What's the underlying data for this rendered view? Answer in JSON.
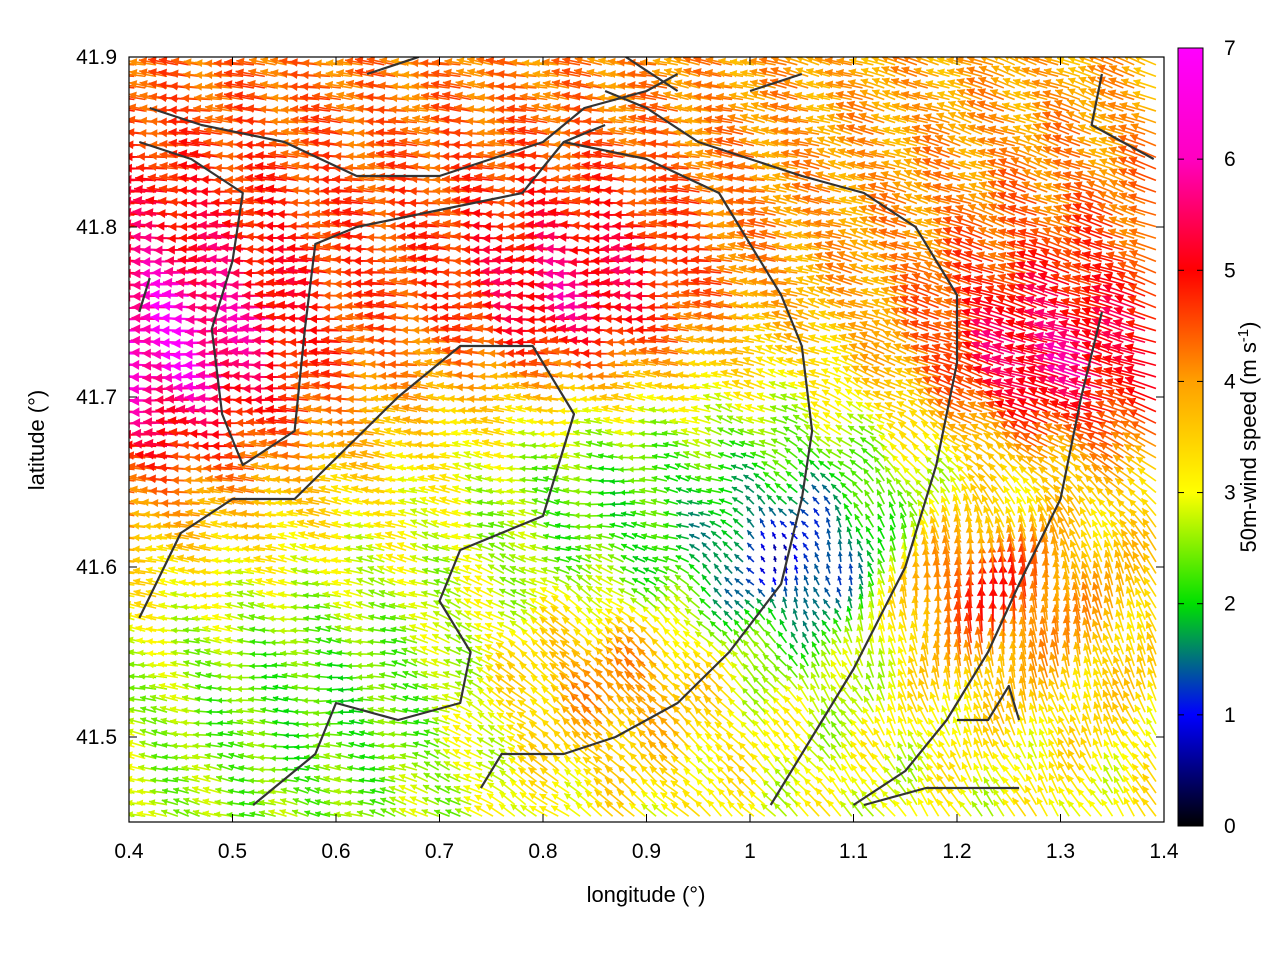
{
  "chart_data": {
    "type": "vector_field",
    "xlabel": "longitude (°)",
    "ylabel": "latitude (°)",
    "xlim": [
      0.4,
      1.4
    ],
    "ylim": [
      41.45,
      41.9
    ],
    "x_ticks": [
      "0.4",
      "0.5",
      "0.6",
      "0.7",
      "0.8",
      "0.9",
      "1",
      "1.1",
      "1.2",
      "1.3",
      "1.4"
    ],
    "y_ticks": [
      "41.5",
      "41.6",
      "41.7",
      "41.8",
      "41.9"
    ],
    "colorbar": {
      "label_main": "50m-wind speed (m s",
      "label_sup": "-1",
      "label_end": ")",
      "range": [
        0,
        7
      ],
      "ticks": [
        "0",
        "1",
        "2",
        "3",
        "4",
        "5",
        "6",
        "7"
      ],
      "colors": [
        "#000000",
        "#0000ff",
        "#00e000",
        "#ffff00",
        "#ffa000",
        "#ff0000",
        "#ff00ff"
      ]
    },
    "field_summary": [
      {
        "region": "north-west",
        "lon": 0.45,
        "lat": 41.73,
        "speed": 7.0,
        "direction": "west"
      },
      {
        "region": "central band",
        "lon": 0.85,
        "lat": 41.76,
        "speed": 6.5,
        "direction": "west"
      },
      {
        "region": "east-central",
        "lon": 1.3,
        "lat": 41.72,
        "speed": 6.5,
        "direction": "west-northwest"
      },
      {
        "region": "centre",
        "lon": 0.88,
        "lat": 41.64,
        "speed": 2.5,
        "direction": "west"
      },
      {
        "region": "calm zone",
        "lon": 1.05,
        "lat": 41.6,
        "speed": 0.8,
        "direction": "north"
      },
      {
        "region": "south-east",
        "lon": 1.22,
        "lat": 41.58,
        "speed": 6.0,
        "direction": "north"
      },
      {
        "region": "south-west",
        "lon": 0.6,
        "lat": 41.52,
        "speed": 2.5,
        "direction": "west"
      },
      {
        "region": "south-central",
        "lon": 0.88,
        "lat": 41.53,
        "speed": 5.0,
        "direction": "northwest"
      }
    ],
    "contours": [
      [
        [
          0.42,
          41.87
        ],
        [
          0.47,
          41.86
        ],
        [
          0.55,
          41.85
        ],
        [
          0.62,
          41.83
        ],
        [
          0.7,
          41.83
        ],
        [
          0.75,
          41.84
        ],
        [
          0.8,
          41.85
        ],
        [
          0.84,
          41.87
        ],
        [
          0.9,
          41.88
        ],
        [
          0.93,
          41.89
        ]
      ],
      [
        [
          0.41,
          41.85
        ],
        [
          0.46,
          41.84
        ],
        [
          0.51,
          41.82
        ],
        [
          0.5,
          41.78
        ],
        [
          0.48,
          41.74
        ],
        [
          0.49,
          41.69
        ],
        [
          0.51,
          41.66
        ],
        [
          0.56,
          41.68
        ],
        [
          0.57,
          41.74
        ],
        [
          0.58,
          41.79
        ],
        [
          0.62,
          41.8
        ],
        [
          0.7,
          41.81
        ],
        [
          0.78,
          41.82
        ],
        [
          0.82,
          41.85
        ],
        [
          0.86,
          41.86
        ]
      ],
      [
        [
          0.41,
          41.75
        ],
        [
          0.42,
          41.77
        ]
      ],
      [
        [
          0.41,
          41.57
        ],
        [
          0.45,
          41.62
        ],
        [
          0.5,
          41.64
        ],
        [
          0.56,
          41.64
        ],
        [
          0.61,
          41.67
        ],
        [
          0.66,
          41.7
        ],
        [
          0.72,
          41.73
        ],
        [
          0.79,
          41.73
        ],
        [
          0.83,
          41.69
        ],
        [
          0.8,
          41.63
        ],
        [
          0.72,
          41.61
        ],
        [
          0.7,
          41.58
        ],
        [
          0.73,
          41.55
        ],
        [
          0.72,
          41.52
        ],
        [
          0.66,
          41.51
        ],
        [
          0.6,
          41.52
        ],
        [
          0.58,
          41.49
        ],
        [
          0.52,
          41.46
        ]
      ],
      [
        [
          0.82,
          41.85
        ],
        [
          0.9,
          41.84
        ],
        [
          0.97,
          41.82
        ],
        [
          1.0,
          41.79
        ],
        [
          1.03,
          41.76
        ],
        [
          1.05,
          41.73
        ],
        [
          1.06,
          41.68
        ],
        [
          1.05,
          41.64
        ],
        [
          1.03,
          41.59
        ],
        [
          0.98,
          41.55
        ],
        [
          0.93,
          41.52
        ],
        [
          0.87,
          41.5
        ],
        [
          0.82,
          41.49
        ],
        [
          0.76,
          41.49
        ],
        [
          0.74,
          41.47
        ]
      ],
      [
        [
          1.02,
          41.46
        ],
        [
          1.06,
          41.5
        ],
        [
          1.1,
          41.54
        ],
        [
          1.15,
          41.6
        ],
        [
          1.18,
          41.66
        ],
        [
          1.2,
          41.72
        ],
        [
          1.2,
          41.76
        ],
        [
          1.16,
          41.8
        ],
        [
          1.11,
          41.82
        ],
        [
          1.05,
          41.83
        ],
        [
          1.0,
          41.84
        ],
        [
          0.95,
          41.85
        ],
        [
          0.9,
          41.87
        ],
        [
          0.86,
          41.88
        ]
      ],
      [
        [
          1.34,
          41.75
        ],
        [
          1.32,
          41.7
        ],
        [
          1.3,
          41.64
        ],
        [
          1.26,
          41.59
        ],
        [
          1.23,
          41.55
        ],
        [
          1.19,
          41.51
        ],
        [
          1.15,
          41.48
        ],
        [
          1.1,
          41.46
        ]
      ],
      [
        [
          1.2,
          41.51
        ],
        [
          1.23,
          41.51
        ],
        [
          1.25,
          41.53
        ],
        [
          1.26,
          41.51
        ]
      ],
      [
        [
          1.11,
          41.46
        ],
        [
          1.17,
          41.47
        ],
        [
          1.22,
          41.47
        ],
        [
          1.26,
          41.47
        ]
      ],
      [
        [
          1.34,
          41.89
        ],
        [
          1.33,
          41.86
        ],
        [
          1.36,
          41.85
        ],
        [
          1.39,
          41.84
        ]
      ],
      [
        [
          0.63,
          41.89
        ],
        [
          0.68,
          41.9
        ]
      ],
      [
        [
          0.88,
          41.9
        ],
        [
          0.93,
          41.88
        ]
      ],
      [
        [
          1.0,
          41.88
        ],
        [
          1.05,
          41.89
        ]
      ]
    ]
  }
}
